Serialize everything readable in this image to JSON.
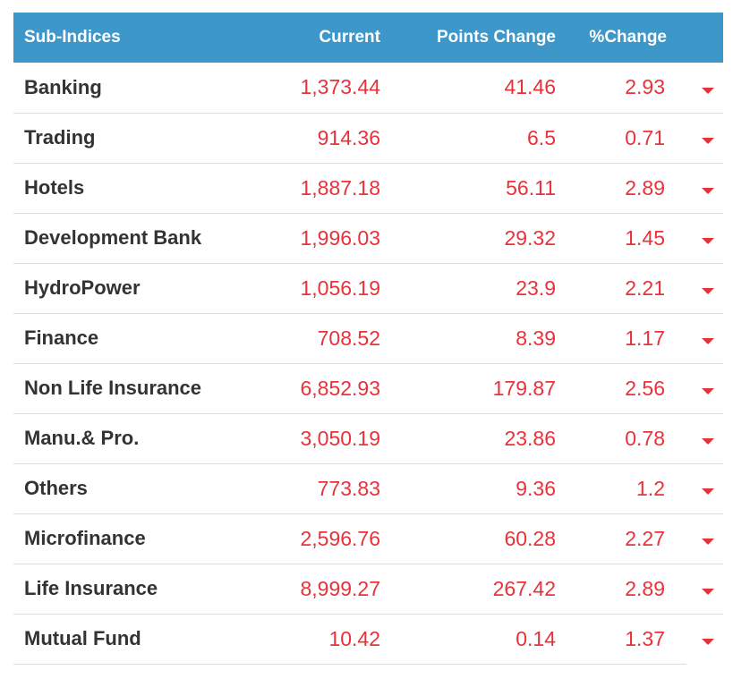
{
  "table": {
    "headers": {
      "name": "Sub-Indices",
      "current": "Current",
      "points_change": "Points Change",
      "percent_change": "%Change"
    },
    "rows": [
      {
        "name": "Banking",
        "current": "1,373.44",
        "points_change": "41.46",
        "percent_change": "2.93",
        "direction": "down"
      },
      {
        "name": "Trading",
        "current": "914.36",
        "points_change": "6.5",
        "percent_change": "0.71",
        "direction": "down"
      },
      {
        "name": "Hotels",
        "current": "1,887.18",
        "points_change": "56.11",
        "percent_change": "2.89",
        "direction": "down"
      },
      {
        "name": "Development Bank",
        "current": "1,996.03",
        "points_change": "29.32",
        "percent_change": "1.45",
        "direction": "down"
      },
      {
        "name": "HydroPower",
        "current": "1,056.19",
        "points_change": "23.9",
        "percent_change": "2.21",
        "direction": "down"
      },
      {
        "name": "Finance",
        "current": "708.52",
        "points_change": "8.39",
        "percent_change": "1.17",
        "direction": "down"
      },
      {
        "name": "Non Life Insurance",
        "current": "6,852.93",
        "points_change": "179.87",
        "percent_change": "2.56",
        "direction": "down"
      },
      {
        "name": "Manu.& Pro.",
        "current": "3,050.19",
        "points_change": "23.86",
        "percent_change": "0.78",
        "direction": "down"
      },
      {
        "name": "Others",
        "current": "773.83",
        "points_change": "9.36",
        "percent_change": "1.2",
        "direction": "down"
      },
      {
        "name": "Microfinance",
        "current": "2,596.76",
        "points_change": "60.28",
        "percent_change": "2.27",
        "direction": "down"
      },
      {
        "name": "Life Insurance",
        "current": "8,999.27",
        "points_change": "267.42",
        "percent_change": "2.89",
        "direction": "down"
      },
      {
        "name": "Mutual Fund",
        "current": "10.42",
        "points_change": "0.14",
        "percent_change": "1.37",
        "direction": "down"
      }
    ]
  },
  "colors": {
    "header_bg": "#3d97c9",
    "header_text": "#ffffff",
    "negative": "#e8323a",
    "name_text": "#333333",
    "row_divider": "#dcdcdc"
  },
  "icons": {
    "down": "caret-down-icon"
  }
}
